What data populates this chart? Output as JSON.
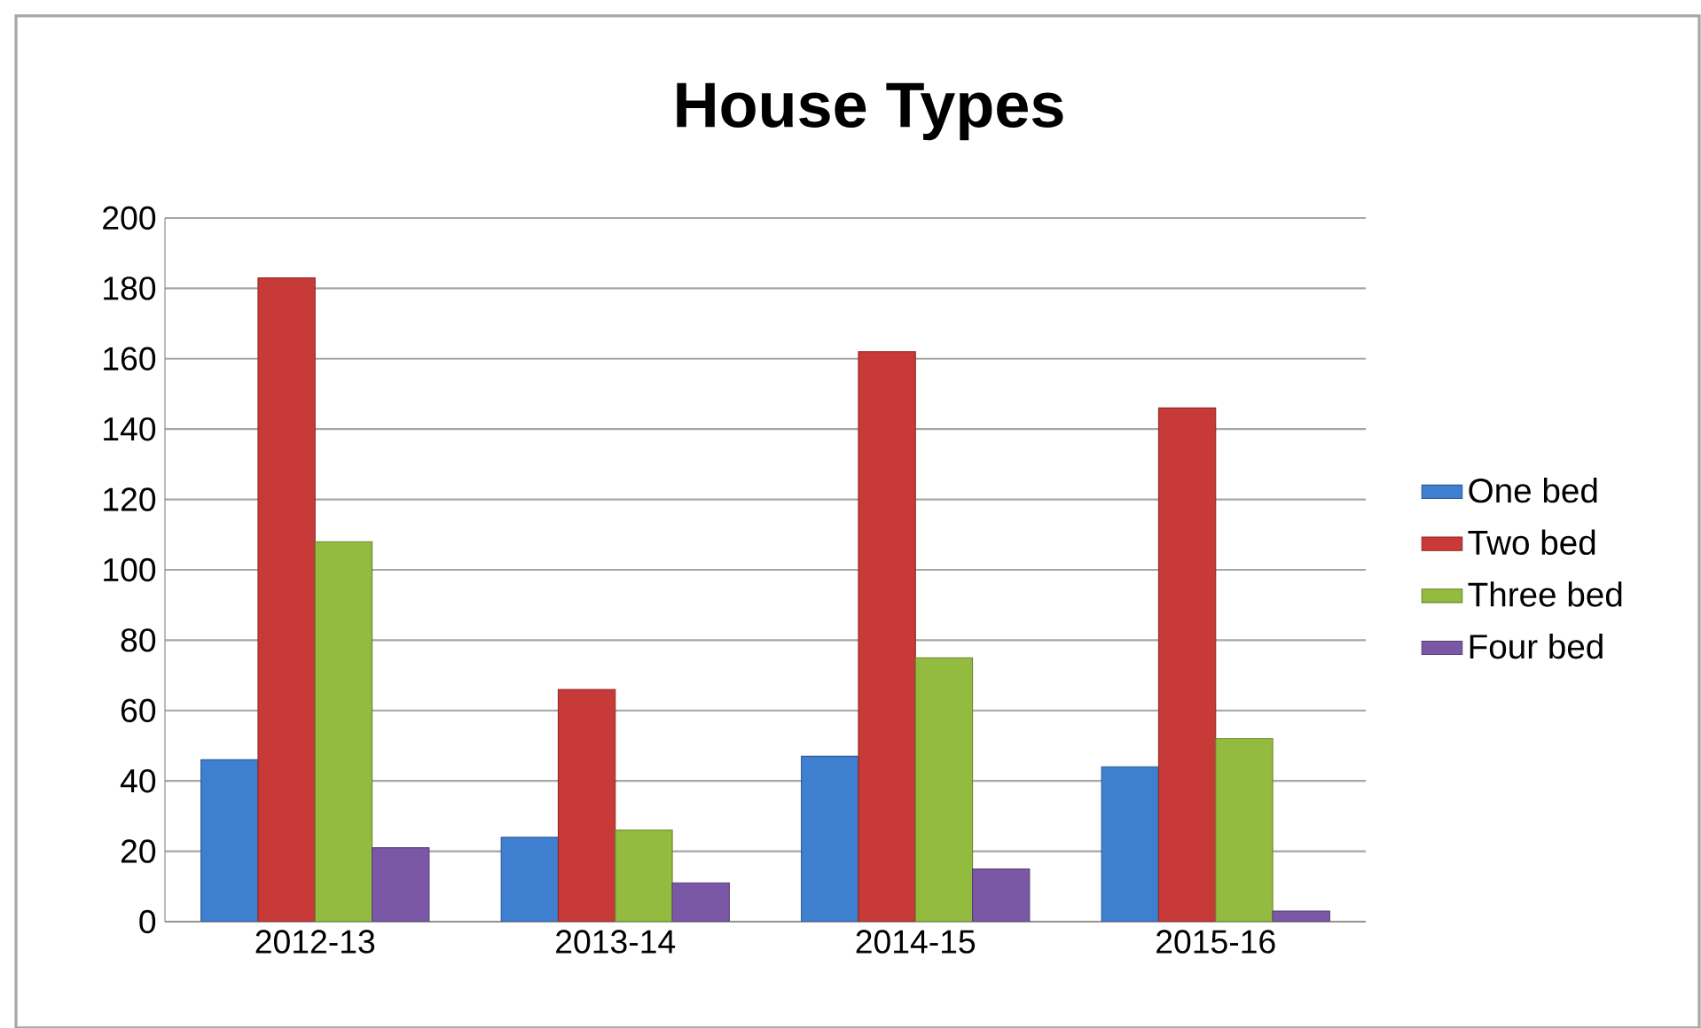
{
  "chart_data": {
    "type": "bar",
    "title": "House Types",
    "categories": [
      "2012-13",
      "2013-14",
      "2014-15",
      "2015-16"
    ],
    "series": [
      {
        "name": "One bed",
        "color": "#3f7fcf",
        "values": [
          46,
          24,
          47,
          44
        ]
      },
      {
        "name": "Two bed",
        "color": "#c83a38",
        "values": [
          183,
          66,
          162,
          146
        ]
      },
      {
        "name": "Three bed",
        "color": "#93bb3f",
        "values": [
          108,
          26,
          75,
          52
        ]
      },
      {
        "name": "Four bed",
        "color": "#7b58a6",
        "values": [
          21,
          11,
          15,
          3
        ]
      }
    ],
    "ylim": [
      0,
      200
    ],
    "yticks": [
      0,
      20,
      40,
      60,
      80,
      100,
      120,
      140,
      160,
      180,
      200
    ],
    "grid": "y",
    "legend": "right"
  }
}
